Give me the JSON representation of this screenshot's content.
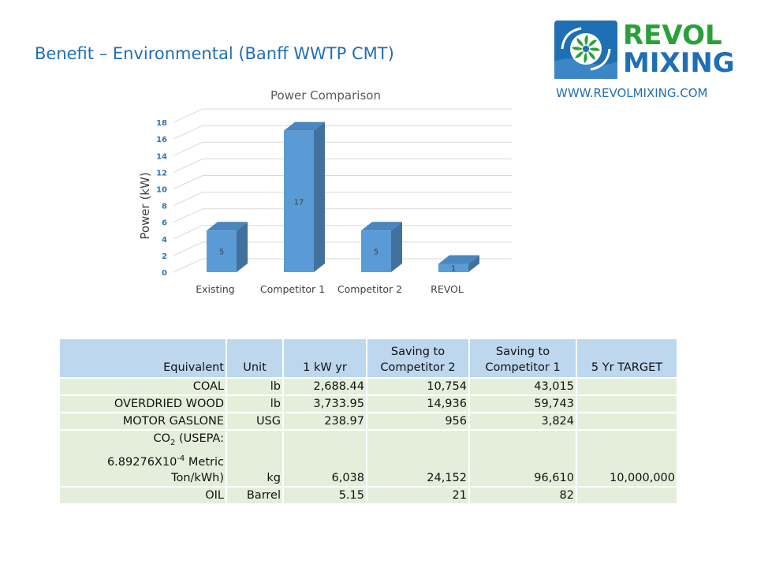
{
  "slide": {
    "title": "Benefit – Environmental (Banff WWTP CMT)",
    "logo_line1": "REVOL",
    "logo_line2": "MIXING",
    "website": "WWW.REVOLMIXING.COM"
  },
  "colors": {
    "bar_front": "#5b9bd5",
    "bar_side": "#41719c",
    "title_blue": "#1f6fb4",
    "logo_green": "#2aa038",
    "table_header": "#bdd7ee",
    "table_row": "#e4efdb"
  },
  "chart_data": {
    "type": "bar",
    "title": "Power Comparison",
    "ylabel": "Power (kW)",
    "xlabel": "",
    "categories": [
      "Existing",
      "Competitor 1",
      "Competitor 2",
      "REVOL"
    ],
    "values": [
      5,
      17,
      5,
      1
    ],
    "data_labels": [
      "5",
      "17",
      "5",
      "1"
    ],
    "yticks": [
      "0",
      "2",
      "4",
      "6",
      "8",
      "10",
      "12",
      "14",
      "16",
      "18"
    ],
    "ylim": [
      0,
      20
    ],
    "grid": true,
    "style": "3d-column"
  },
  "table": {
    "headers": [
      "Equivalent",
      "Unit",
      "1 kW yr",
      "Saving to Competitor 2",
      "Saving to Competitor 1",
      "5 Yr TARGET"
    ],
    "rows": [
      {
        "equivalent": "COAL",
        "unit": "lb",
        "kw_yr": "2,688.44",
        "saving_c2": "10,754",
        "saving_c1": "43,015",
        "target": ""
      },
      {
        "equivalent": "OVERDRIED WOOD",
        "unit": "lb",
        "kw_yr": "3,733.95",
        "saving_c2": "14,936",
        "saving_c1": "59,743",
        "target": ""
      },
      {
        "equivalent": "MOTOR GASLONE",
        "unit": "USG",
        "kw_yr": "238.97",
        "saving_c2": "956",
        "saving_c1": "3,824",
        "target": ""
      },
      {
        "equivalent_parts": [
          "CO",
          "2",
          " (USEPA:",
          "6.89276X10",
          "-4",
          " Metric",
          "Ton/kWh)"
        ],
        "unit": "kg",
        "kw_yr": "6,038",
        "saving_c2": "24,152",
        "saving_c1": "96,610",
        "target": "10,000,000"
      },
      {
        "equivalent": "OIL",
        "unit": "Barrel",
        "kw_yr": "5.15",
        "saving_c2": "21",
        "saving_c1": "82",
        "target": ""
      }
    ]
  }
}
